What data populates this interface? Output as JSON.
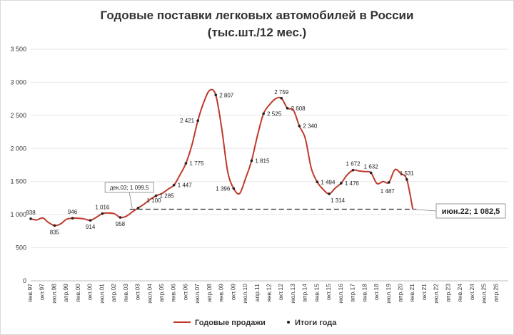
{
  "chart_data": {
    "type": "line",
    "title": "Годовые поставки легковых автомобилей в России",
    "subtitle": "(тыс.шт./12 мес.)",
    "ylim": [
      0,
      3500
    ],
    "yticks": [
      "0",
      "500",
      "1 000",
      "1 500",
      "2 000",
      "2 500",
      "3 000",
      "3 500"
    ],
    "xticks": [
      "янв.97",
      "окт.97",
      "июл.98",
      "апр.99",
      "янв.00",
      "окт.00",
      "июл.01",
      "апр.02",
      "янв.03",
      "окт.03",
      "июл.04",
      "апр.05",
      "янв.06",
      "окт.06",
      "июл.07",
      "апр.08",
      "янв.09",
      "окт.09",
      "июл.10",
      "апр.11",
      "янв.12",
      "окт.12",
      "июл.13",
      "апр.14",
      "янв.15",
      "окт.15",
      "июл.16",
      "апр.17",
      "янв.18",
      "окт.18",
      "июл.19",
      "апр.20",
      "янв.21",
      "окт.21",
      "июл.22",
      "апр.23",
      "янв.24",
      "окт.24",
      "июл.25",
      "апр.26"
    ],
    "series": [
      {
        "name": "Годовые продажи",
        "color": "#c0392b",
        "points": [
          [
            0,
            938
          ],
          [
            0.5,
            920
          ],
          [
            1,
            950
          ],
          [
            1.5,
            880
          ],
          [
            2,
            835
          ],
          [
            2.5,
            860
          ],
          [
            3,
            930
          ],
          [
            3.5,
            946
          ],
          [
            4,
            945
          ],
          [
            4.5,
            935
          ],
          [
            5,
            914
          ],
          [
            5.5,
            960
          ],
          [
            6,
            1016
          ],
          [
            6.5,
            1025
          ],
          [
            7,
            1015
          ],
          [
            7.5,
            958
          ],
          [
            8,
            975
          ],
          [
            8.5,
            1040
          ],
          [
            9,
            1100
          ],
          [
            9.5,
            1160
          ],
          [
            10,
            1230
          ],
          [
            10.5,
            1285
          ],
          [
            11,
            1320
          ],
          [
            11.5,
            1385
          ],
          [
            12,
            1447
          ],
          [
            12.5,
            1600
          ],
          [
            13,
            1775
          ],
          [
            13.5,
            2050
          ],
          [
            14,
            2421
          ],
          [
            14.5,
            2700
          ],
          [
            15,
            2880
          ],
          [
            15.5,
            2807
          ],
          [
            16,
            2300
          ],
          [
            16.5,
            1650
          ],
          [
            17,
            1396
          ],
          [
            17.5,
            1320
          ],
          [
            18,
            1550
          ],
          [
            18.5,
            1815
          ],
          [
            19,
            2200
          ],
          [
            19.5,
            2525
          ],
          [
            20,
            2660
          ],
          [
            20.5,
            2750
          ],
          [
            21,
            2759
          ],
          [
            21.5,
            2608
          ],
          [
            22,
            2580
          ],
          [
            22.5,
            2340
          ],
          [
            23,
            2150
          ],
          [
            23.5,
            1700
          ],
          [
            24,
            1494
          ],
          [
            24.5,
            1380
          ],
          [
            25,
            1314
          ],
          [
            25.5,
            1400
          ],
          [
            26,
            1476
          ],
          [
            26.5,
            1600
          ],
          [
            27,
            1672
          ],
          [
            27.5,
            1660
          ],
          [
            28,
            1650
          ],
          [
            28.5,
            1632
          ],
          [
            29,
            1470
          ],
          [
            29.5,
            1500
          ],
          [
            30,
            1487
          ],
          [
            30.5,
            1680
          ],
          [
            31,
            1620
          ],
          [
            31.5,
            1531
          ],
          [
            32,
            1082.5
          ]
        ]
      },
      {
        "name": "Итоги года",
        "color": "#222222",
        "labeled_points": [
          {
            "x": 0,
            "y": 938,
            "label": "938"
          },
          {
            "x": 2,
            "y": 835,
            "label": "835"
          },
          {
            "x": 3.5,
            "y": 946,
            "label": "946"
          },
          {
            "x": 5,
            "y": 914,
            "label": "914"
          },
          {
            "x": 6,
            "y": 1016,
            "label": "1 016"
          },
          {
            "x": 7.5,
            "y": 958,
            "label": "958"
          },
          {
            "x": 9,
            "y": 1100,
            "label": "1 100"
          },
          {
            "x": 10.5,
            "y": 1285,
            "label": "1 285"
          },
          {
            "x": 12,
            "y": 1447,
            "label": "1 447"
          },
          {
            "x": 13,
            "y": 1775,
            "label": "1 775"
          },
          {
            "x": 14,
            "y": 2421,
            "label": "2 421"
          },
          {
            "x": 15.5,
            "y": 2807,
            "label": "2 807"
          },
          {
            "x": 17,
            "y": 1396,
            "label": "1 396"
          },
          {
            "x": 18.5,
            "y": 1815,
            "label": "1 815"
          },
          {
            "x": 19.5,
            "y": 2525,
            "label": "2 525"
          },
          {
            "x": 21,
            "y": 2759,
            "label": "2 759"
          },
          {
            "x": 21.5,
            "y": 2608,
            "label": "2 608"
          },
          {
            "x": 22.5,
            "y": 2340,
            "label": "2 340"
          },
          {
            "x": 24,
            "y": 1494,
            "label": "1 494"
          },
          {
            "x": 25,
            "y": 1314,
            "label": "1 314"
          },
          {
            "x": 26,
            "y": 1476,
            "label": "1 476"
          },
          {
            "x": 27,
            "y": 1672,
            "label": "1 672"
          },
          {
            "x": 28.5,
            "y": 1632,
            "label": "1 632"
          },
          {
            "x": 30,
            "y": 1487,
            "label": "1 487"
          },
          {
            "x": 31.5,
            "y": 1531,
            "label": "1 531"
          }
        ]
      }
    ],
    "reference_line": {
      "y": 1082.5,
      "style": "dashed"
    },
    "annotations": [
      {
        "x": 8.5,
        "y": 1099.5,
        "text": "дек.03; 1 099,5"
      },
      {
        "x": 32,
        "y": 1082.5,
        "text": "июн.22; 1 082,5"
      }
    ],
    "legend": {
      "position": "bottom",
      "entries": [
        "Годовые продажи",
        "Итоги года"
      ]
    },
    "grid": true
  }
}
